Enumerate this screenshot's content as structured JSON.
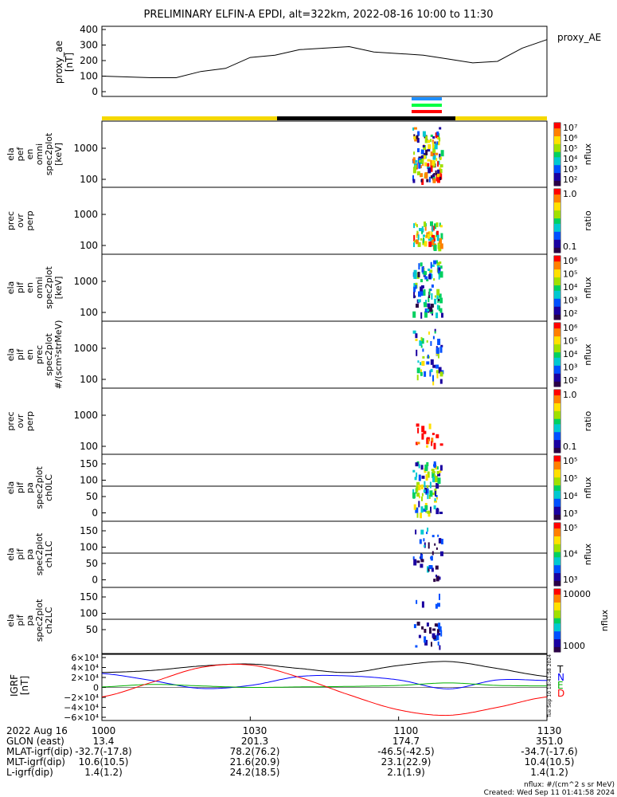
{
  "title": "PRELIMINARY ELFIN-A EPDI, alt=322km, 2022-08-16 10:00 to 11:30",
  "colors": {
    "yellow": "#f5d800",
    "black": "#000000",
    "blue": "#0000ff",
    "red": "#ff0000",
    "green": "#00b000",
    "cyan_bar": "#1e90ff",
    "green_bar": "#00ff44",
    "red_bar": "#ff0000"
  },
  "panels": {
    "ae": {
      "ylabel_lines": [
        "proxy_ae",
        "[nT]"
      ],
      "ticks": [
        "400",
        "300",
        "200",
        "100",
        "0"
      ],
      "side_label": "proxy_AE"
    },
    "p1": {
      "ylabel_lines": [
        "ela",
        "pef",
        "en",
        "omni",
        "spec2plot",
        "[keV]"
      ],
      "ticks": [
        "1000",
        "100"
      ]
    },
    "p2": {
      "ylabel_lines": [
        "prec",
        "ovr",
        "perp"
      ],
      "ticks": [
        "1000",
        "100"
      ]
    },
    "p3": {
      "ylabel_lines": [
        "ela",
        "pif",
        "en",
        "omni",
        "spec2plot",
        "[keV]"
      ],
      "ticks": [
        "1000",
        "100"
      ]
    },
    "p4": {
      "ylabel_lines": [
        "ela",
        "pif",
        "en",
        "prec",
        "spec2plot",
        "#/(scm²strMeV)"
      ],
      "ticks": [
        "1000",
        "100"
      ]
    },
    "p5": {
      "ylabel_lines": [
        "prec",
        "ovr",
        "perp"
      ],
      "ticks": [
        "1000",
        "100"
      ]
    },
    "p6": {
      "ylabel_lines": [
        "ela",
        "pif",
        "pa",
        "spec2plot",
        "ch0LC"
      ],
      "ticks": [
        "150",
        "100",
        "50",
        "0"
      ]
    },
    "p7": {
      "ylabel_lines": [
        "ela",
        "pif",
        "pa",
        "spec2plot",
        "ch1LC"
      ],
      "ticks": [
        "150",
        "100",
        "50",
        "0"
      ]
    },
    "p8": {
      "ylabel_lines": [
        "ela",
        "pif",
        "pa",
        "spec2plot",
        "ch2LC"
      ],
      "ticks": [
        "150",
        "100",
        "50"
      ]
    },
    "igrf": {
      "ylabel_lines": [
        "IGRF",
        "[nT]"
      ],
      "ticks": [
        "6×10⁴",
        "4×10⁴",
        "2×10⁴",
        "0",
        "−2×10⁴",
        "−4×10⁴",
        "−6×10⁴"
      ],
      "legend": [
        "T",
        "N",
        "E",
        "D"
      ]
    }
  },
  "colorbars": [
    {
      "ticks": [
        "10⁷",
        "10⁶",
        "10⁵",
        "10⁴",
        "10³",
        "10²"
      ],
      "label": "nflux"
    },
    {
      "ticks": [
        "1.0",
        "0.1"
      ],
      "label": "ratio"
    },
    {
      "ticks": [
        "10⁶",
        "10⁵",
        "10⁴",
        "10³",
        "10²"
      ],
      "label": "nflux"
    },
    {
      "ticks": [
        "10⁶",
        "10⁵",
        "10⁴",
        "10³",
        "10²"
      ],
      "label": "nflux"
    },
    {
      "ticks": [
        "1.0",
        "0.1"
      ],
      "label": "ratio"
    },
    {
      "ticks": [
        "10⁵",
        "10⁵",
        "10⁴",
        "10³"
      ],
      "label": "nflux"
    },
    {
      "ticks": [
        "10⁵",
        "10⁴",
        "10³"
      ],
      "label": "nflux"
    },
    {
      "ticks": [
        "10000",
        "1000"
      ],
      "label": "nflux"
    }
  ],
  "footer": {
    "rows": [
      {
        "label": "2022 Aug 16",
        "values": [
          "1000",
          "1030",
          "1100",
          "1130"
        ]
      },
      {
        "label": "GLON (east)",
        "values": [
          "13.4",
          "201.3",
          "174.7",
          "351.0"
        ]
      },
      {
        "label": "MLAT-igrf(dip)",
        "values": [
          "-32.7(-17.8)",
          "78.2(76.2)",
          "-46.5(-42.5)",
          "-34.7(-17.6)"
        ]
      },
      {
        "label": "MLT-igrf(dip)",
        "values": [
          "10.6(10.5)",
          "21.6(20.9)",
          "23.1(22.9)",
          "10.4(10.5)"
        ]
      },
      {
        "label": "L-igrf(dip)",
        "values": [
          "1.4(1.2)",
          "24.2(18.5)",
          "2.1(1.9)",
          "1.4(1.2)"
        ]
      }
    ],
    "units_note": "nflux: #/(cm^2 s sr MeV)",
    "created": "Created: Wed Sep 11 01:41:58 2024",
    "side_stamp": "Tue Sep 10 18:41:58 2024"
  },
  "chart_data": [
    {
      "type": "line",
      "title": "PRELIMINARY ELFIN-A EPDI, alt=322km, 2022-08-16 10:00 to 11:30",
      "ylabel": "proxy_ae [nT]",
      "ylim": [
        0,
        400
      ],
      "series": [
        {
          "name": "proxy_AE",
          "x_minutes": [
            0,
            5,
            10,
            15,
            20,
            25,
            30,
            35,
            40,
            45,
            50,
            55,
            60,
            65,
            70,
            75,
            80,
            85,
            90
          ],
          "values": [
            100,
            95,
            90,
            90,
            130,
            150,
            220,
            235,
            270,
            280,
            290,
            255,
            245,
            235,
            210,
            185,
            195,
            280,
            335
          ]
        }
      ]
    },
    {
      "type": "line",
      "ylabel": "IGRF [nT]",
      "ylim": [
        -60000,
        60000
      ],
      "series": [
        {
          "name": "T",
          "x_minutes": [
            0,
            10,
            20,
            30,
            40,
            50,
            60,
            70,
            80,
            90
          ],
          "values": [
            30000,
            34000,
            43000,
            47000,
            38000,
            30000,
            44000,
            52000,
            38000,
            22000
          ]
        },
        {
          "name": "N",
          "x_minutes": [
            0,
            10,
            20,
            30,
            40,
            50,
            60,
            70,
            80,
            90
          ],
          "values": [
            28000,
            14000,
            -2000,
            4000,
            22000,
            23000,
            15000,
            -3000,
            15000,
            14000
          ]
        },
        {
          "name": "E",
          "x_minutes": [
            0,
            10,
            20,
            30,
            40,
            50,
            60,
            70,
            80,
            90
          ],
          "values": [
            1000,
            6000,
            3000,
            0,
            1000,
            2000,
            4000,
            9000,
            4000,
            3000
          ]
        },
        {
          "name": "D",
          "x_minutes": [
            0,
            10,
            20,
            30,
            40,
            50,
            60,
            70,
            80,
            90
          ],
          "values": [
            -19000,
            10000,
            40000,
            45000,
            20000,
            -15000,
            -45000,
            -56000,
            -40000,
            -19000
          ]
        }
      ]
    }
  ]
}
